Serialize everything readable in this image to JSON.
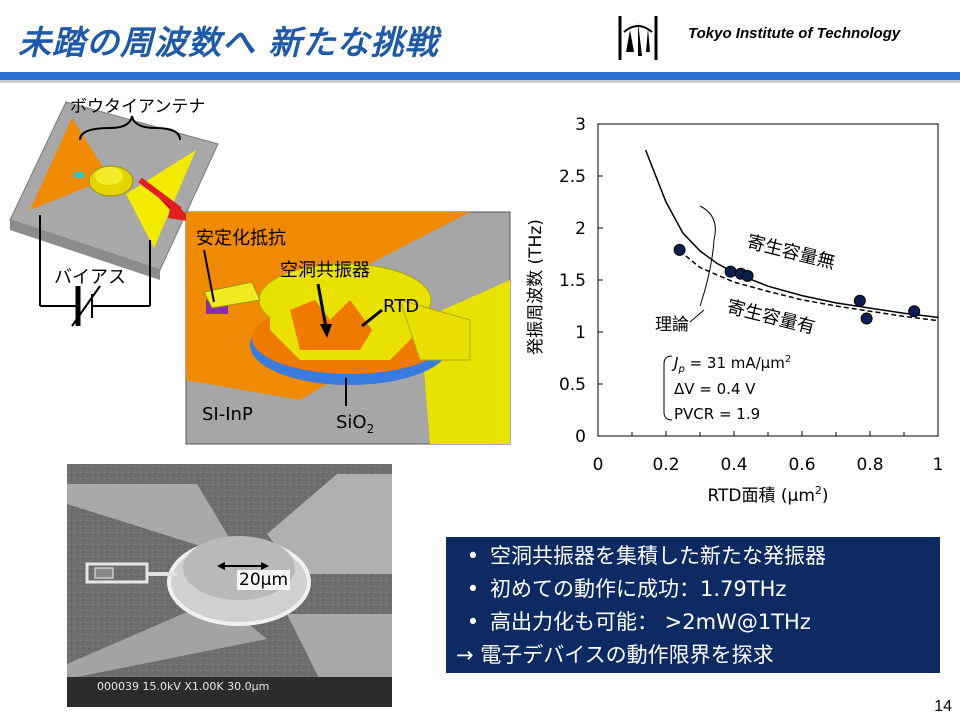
{
  "slide": {
    "title": "未踏の周波数へ 新たな挑戦",
    "org": "Tokyo Institute of Technology",
    "page_number": "14"
  },
  "device": {
    "antenna_label": "ボウタイアンテナ",
    "bias_label": "バイアス",
    "stabilizer_label": "安定化抵抗",
    "cavity_label": "空洞共振器",
    "rtd_label": "RTD",
    "substrate_label": "SI-InP",
    "oxide_label": "SiO",
    "oxide_sub": "2"
  },
  "sem": {
    "scale_label": "20μm",
    "info_bar": "000039  15.0kV  X1.00K  30.0μm"
  },
  "chart_data": {
    "type": "scatter",
    "xlabel_pre": "RTD面積 (μm",
    "xlabel_sup": "2",
    "xlabel_post": ")",
    "ylabel": "発振周波数 (THz)",
    "xlim": [
      0,
      1
    ],
    "ylim": [
      0,
      3
    ],
    "x_ticks": [
      "0",
      "0.2",
      "0.4",
      "0.6",
      "0.8",
      "1"
    ],
    "y_ticks": [
      "0",
      "0.5",
      "1",
      "1.5",
      "2",
      "2.5",
      "3"
    ],
    "series": [
      {
        "name": "寄生容量無",
        "style": "solid-line",
        "x": [
          0.14,
          0.2,
          0.25,
          0.3,
          0.35,
          0.4,
          0.5,
          0.6,
          0.7,
          0.8,
          0.9,
          1.0
        ],
        "y": [
          2.75,
          2.25,
          1.95,
          1.78,
          1.66,
          1.57,
          1.44,
          1.35,
          1.28,
          1.23,
          1.18,
          1.14
        ]
      },
      {
        "name": "寄生容量有",
        "style": "dashed-line",
        "x": [
          0.24,
          0.3,
          0.4,
          0.5,
          0.6,
          0.7,
          0.8,
          0.9,
          1.0
        ],
        "y": [
          1.78,
          1.62,
          1.48,
          1.39,
          1.31,
          1.25,
          1.2,
          1.15,
          1.11
        ]
      },
      {
        "name": "",
        "style": "points",
        "x": [
          0.24,
          0.39,
          0.42,
          0.44,
          0.77,
          0.79,
          0.93
        ],
        "y": [
          1.79,
          1.58,
          1.56,
          1.54,
          1.3,
          1.13,
          1.2
        ]
      }
    ],
    "annotations": {
      "theory": "理論",
      "no_parasitic": "寄生容量無",
      "with_parasitic": "寄生容量有",
      "param_jp_sym": "J",
      "param_jp_sub": "p",
      "param_jp_val": " = 31 mA/μm",
      "param_jp_sup": "2",
      "param_dv": "ΔV = 0.4 V",
      "param_pvcr": "PVCR = 1.9"
    }
  },
  "summary": {
    "items": [
      "空洞共振器を集積した新たな発振器",
      "初めての動作に成功：1.79THz",
      "高出力化も可能： >2mW@1THz"
    ],
    "bullet": "•",
    "conclusion": "→ 電子デバイスの動作限界を探求"
  }
}
